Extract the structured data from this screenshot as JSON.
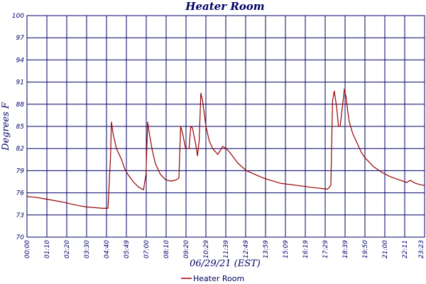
{
  "chart_data": {
    "type": "line",
    "title": "Heater Room",
    "xlabel": "06/29/21 (EST)",
    "ylabel": "Degrees F",
    "y_tick_labels": [
      "70",
      "73",
      "76",
      "79",
      "82",
      "85",
      "88",
      "91",
      "94",
      "97",
      "100"
    ],
    "x_tick_labels": [
      "00:00",
      "01:10",
      "02:20",
      "03:30",
      "04:40",
      "05:49",
      "07:00",
      "08:10",
      "09:20",
      "10:29",
      "11:39",
      "12:49",
      "13:59",
      "15:09",
      "16:19",
      "17:29",
      "18:39",
      "19:50",
      "21:00",
      "22:11",
      "23:23"
    ],
    "ylim": [
      70,
      100
    ],
    "grid": true,
    "legend_position": "bottom-center",
    "colors": {
      "series": "#990000",
      "grid": "#000066",
      "text": "#000066"
    },
    "series": [
      {
        "name": "Heater Room",
        "x": [
          0,
          0.5,
          1,
          2,
          3,
          3.5,
          4.5,
          4.8,
          4.95,
          5.0,
          5.1,
          5.3,
          5.6,
          5.8,
          6.0,
          6.3,
          6.6,
          6.9,
          7.05,
          7.15,
          7.25,
          7.4,
          7.6,
          7.9,
          8.2,
          8.5,
          8.8,
          9.0,
          9.1,
          9.2,
          9.4,
          9.6,
          9.7,
          9.8,
          10.0,
          10.1,
          10.2,
          10.3,
          10.4,
          10.6,
          10.8,
          11.0,
          11.3,
          11.6,
          11.8,
          12.0,
          12.5,
          13.0,
          13.5,
          14.0,
          15.0,
          16.0,
          17.0,
          17.8,
          18.0,
          18.1,
          18.2,
          18.35,
          18.45,
          18.55,
          18.8,
          18.9,
          19.0,
          19.1,
          19.3,
          19.5,
          19.8,
          20.0,
          20.5,
          21.0,
          21.5,
          22.0,
          22.5,
          22.7,
          23.0,
          23.3,
          23.55
        ],
        "y": [
          75.5,
          75.4,
          75.2,
          74.8,
          74.3,
          74.1,
          73.9,
          73.9,
          81.0,
          85.6,
          84.0,
          82.0,
          80.5,
          79.2,
          78.4,
          77.5,
          76.8,
          76.4,
          78.5,
          85.6,
          84.0,
          82.0,
          80.0,
          78.5,
          77.8,
          77.6,
          77.7,
          78.0,
          85.0,
          84.2,
          82.0,
          82.0,
          85.0,
          84.8,
          82.5,
          81.0,
          83.0,
          89.5,
          88.5,
          85.0,
          83.0,
          82.0,
          81.2,
          82.3,
          82.0,
          81.5,
          80.0,
          79.0,
          78.5,
          78.0,
          77.3,
          77.0,
          76.7,
          76.5,
          77.0,
          88.5,
          89.8,
          87.5,
          85.0,
          85.0,
          90.0,
          89.0,
          87.0,
          85.5,
          84.0,
          83.0,
          81.5,
          80.8,
          79.6,
          78.8,
          78.2,
          77.8,
          77.4,
          77.7,
          77.3,
          77.1,
          77.0
        ]
      }
    ]
  }
}
